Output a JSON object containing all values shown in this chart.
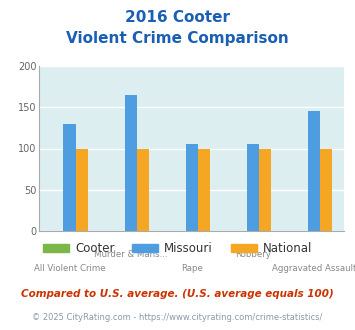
{
  "title_line1": "2016 Cooter",
  "title_line2": "Violent Crime Comparison",
  "categories": [
    "All Violent Crime",
    "Murder & Mans...",
    "Rape",
    "Robbery",
    "Aggravated Assault"
  ],
  "x_labels_line1": [
    "",
    "Murder & Mans...",
    "",
    "Robbery",
    ""
  ],
  "x_labels_line2": [
    "All Violent Crime",
    "",
    "Rape",
    "",
    "Aggravated Assault"
  ],
  "series": {
    "Cooter": [
      0,
      0,
      0,
      0,
      0
    ],
    "Missouri": [
      130,
      165,
      105,
      105,
      146
    ],
    "National": [
      100,
      100,
      100,
      100,
      100
    ]
  },
  "colors": {
    "Cooter": "#7ab648",
    "Missouri": "#4d9de0",
    "National": "#f5a623"
  },
  "ylim": [
    0,
    200
  ],
  "yticks": [
    0,
    50,
    100,
    150,
    200
  ],
  "plot_bg_color": "#ddeef0",
  "title_color": "#1a5fb4",
  "subtitle_color": "#1a5fb4",
  "xlabel_color": "#888888",
  "footnote1": "Compared to U.S. average. (U.S. average equals 100)",
  "footnote2": "© 2025 CityRating.com - https://www.cityrating.com/crime-statistics/",
  "footnote1_color": "#cc3300",
  "footnote2_color": "#8899aa",
  "legend_labels": [
    "Cooter",
    "Missouri",
    "National"
  ]
}
